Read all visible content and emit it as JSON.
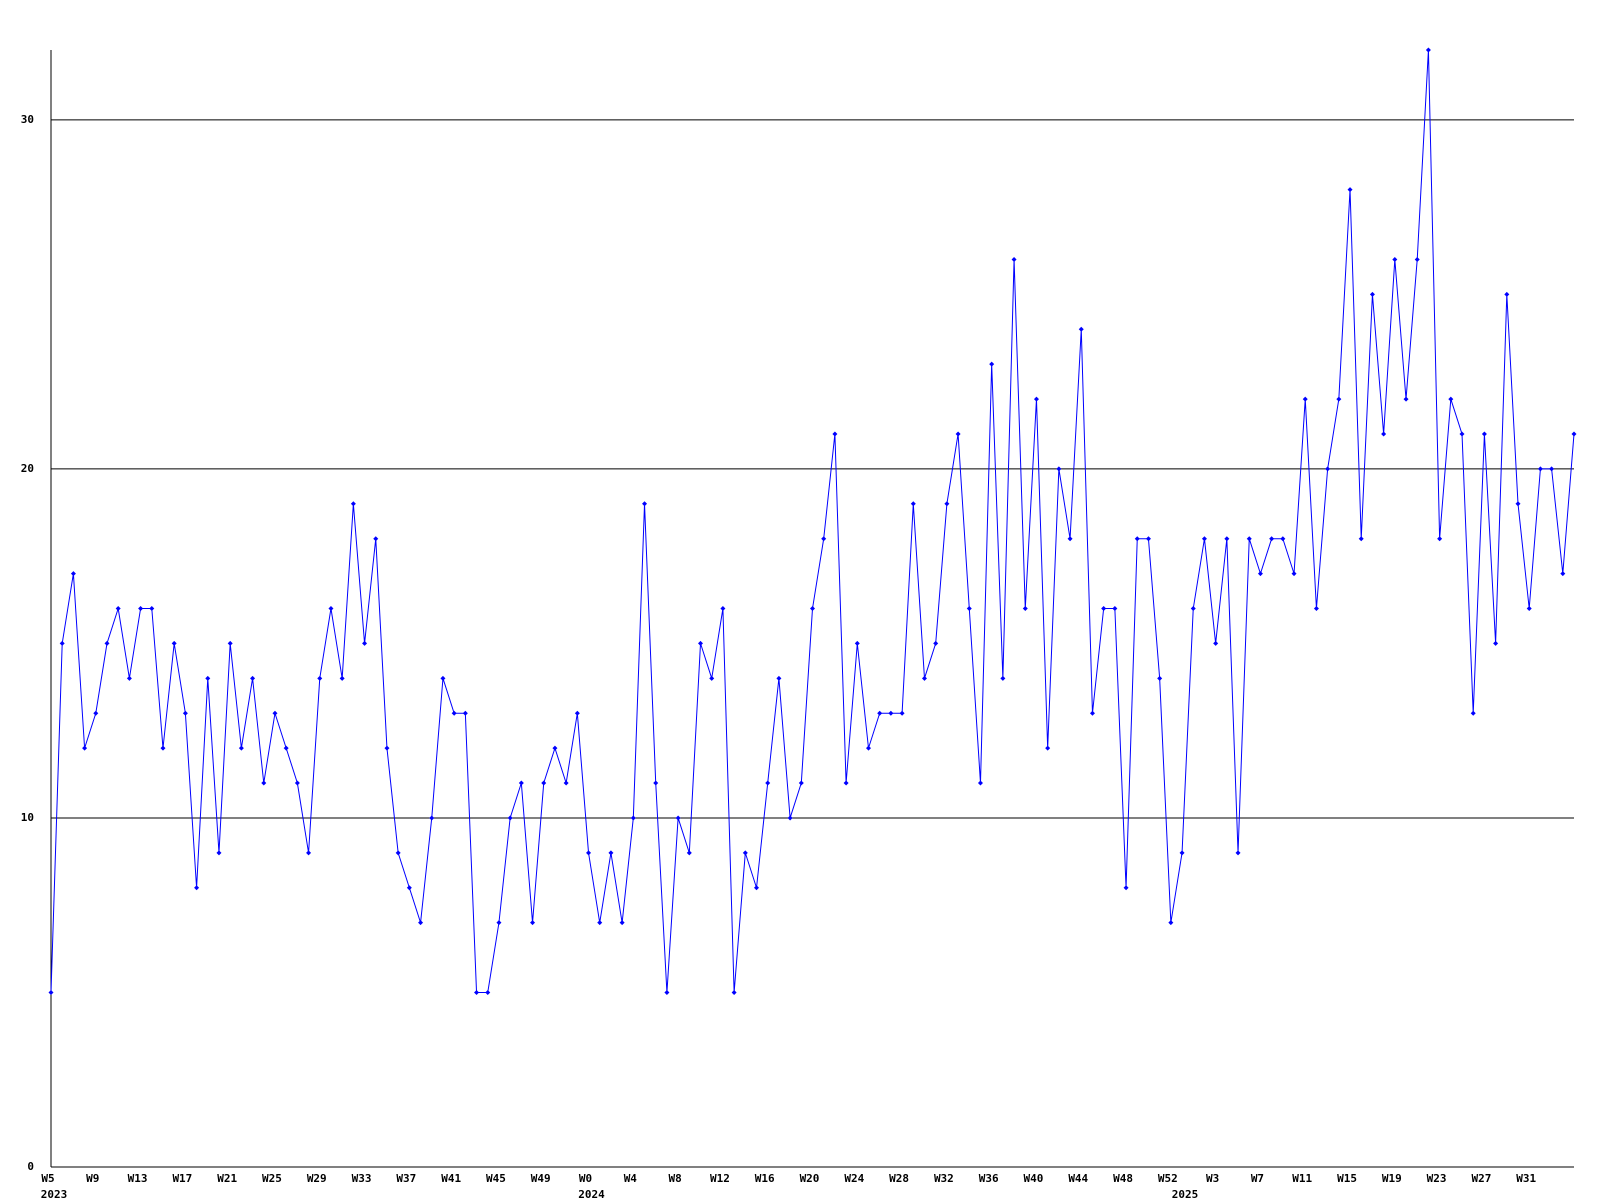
{
  "chart_data": {
    "type": "line",
    "categories": [
      "W5",
      null,
      null,
      null,
      "W9",
      null,
      null,
      null,
      "W13",
      null,
      null,
      null,
      "W17",
      null,
      null,
      null,
      "W21",
      null,
      null,
      null,
      "W25",
      null,
      null,
      null,
      "W29",
      null,
      null,
      null,
      "W33",
      null,
      null,
      null,
      "W37",
      null,
      null,
      null,
      "W41",
      null,
      null,
      null,
      "W45",
      null,
      null,
      null,
      "W49",
      null,
      null,
      null,
      "W0",
      null,
      null,
      null,
      "W4",
      null,
      null,
      null,
      "W8",
      null,
      null,
      null,
      "W12",
      null,
      null,
      null,
      "W16",
      null,
      null,
      null,
      "W20",
      null,
      null,
      null,
      "W24",
      null,
      null,
      null,
      "W28",
      null,
      null,
      null,
      "W32",
      null,
      null,
      null,
      "W36",
      null,
      null,
      null,
      "W40",
      null,
      null,
      null,
      "W44",
      null,
      null,
      null,
      "W48",
      null,
      null,
      null,
      "W52",
      null,
      null,
      null,
      "W3",
      null,
      null,
      null,
      "W7",
      null,
      null,
      null,
      "W11",
      null,
      null,
      null,
      "W15",
      null,
      null,
      null,
      "W19",
      null,
      null,
      null,
      "W23",
      null,
      null,
      null,
      "W27",
      null,
      null,
      null,
      "W31",
      null,
      null,
      null,
      null
    ],
    "year_labels": [
      {
        "index": 0,
        "label": "2023"
      },
      {
        "index": 48,
        "label": "2024"
      },
      {
        "index": 101,
        "label": "2025"
      }
    ],
    "values": [
      5,
      15,
      17,
      12,
      13,
      15,
      16,
      14,
      16,
      16,
      12,
      15,
      13,
      8,
      14,
      9,
      15,
      12,
      14,
      11,
      13,
      12,
      11,
      9,
      14,
      16,
      14,
      19,
      15,
      18,
      12,
      9,
      8,
      7,
      10,
      14,
      13,
      13,
      5,
      5,
      7,
      10,
      11,
      7,
      11,
      12,
      11,
      13,
      9,
      7,
      9,
      7,
      10,
      19,
      11,
      5,
      10,
      9,
      15,
      14,
      16,
      5,
      9,
      8,
      11,
      14,
      10,
      11,
      16,
      18,
      21,
      11,
      15,
      12,
      13,
      13,
      13,
      19,
      14,
      15,
      19,
      21,
      16,
      11,
      23,
      14,
      26,
      16,
      22,
      12,
      20,
      18,
      24,
      13,
      16,
      16,
      8,
      18,
      18,
      14,
      7,
      9,
      16,
      18,
      15,
      18,
      9,
      18,
      17,
      18,
      18,
      17,
      22,
      16,
      20,
      22,
      28,
      18,
      25,
      21,
      26,
      22,
      26,
      32,
      18,
      22,
      21,
      13,
      21,
      15,
      25,
      19,
      16,
      20,
      20,
      17,
      21
    ],
    "color": "#0000ff",
    "ylim": [
      0,
      32
    ],
    "yticks": [
      0,
      10,
      20,
      30
    ],
    "grid": true
  }
}
